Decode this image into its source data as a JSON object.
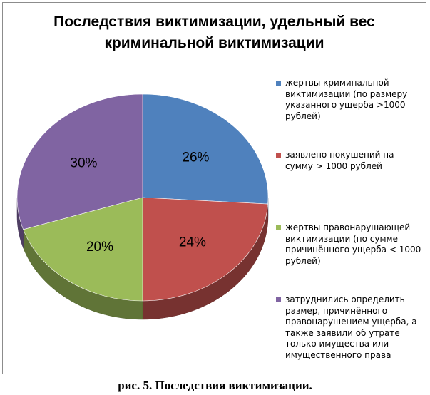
{
  "chart_data": {
    "type": "pie",
    "title_lines": [
      "Последствия виктимизации, удельный вес",
      "криминальной виктимизации"
    ],
    "categories": [
      "жертвы криминальной виктимизации (по размеру указанного ущерба >1000 рублей)",
      "заявлено покушений на сумму > 1000  рублей",
      "жертвы правонарушающей виктимизации (по сумме причинённого ущерба < 1000 рублей)",
      "затруднились определить размер, причинённого правонарушением ущерба, а также заявили об утрате только имущества или имущественного права"
    ],
    "values": [
      26,
      24,
      20,
      30
    ],
    "value_labels": [
      "26%",
      "24%",
      "20%",
      "30%"
    ],
    "colors": [
      "#4f81bd",
      "#c0504d",
      "#9bbb59",
      "#8064a2"
    ],
    "legend_position": "right",
    "style": "3d-pie"
  },
  "legend": {
    "items": [
      [
        "жертвы криминальной",
        "виктимизации (по размеру",
        "указанного ущерба >1000",
        "рублей)"
      ],
      [
        "заявлено покушений на",
        "сумму > 1000  рублей"
      ],
      [
        "жертвы правонарушающей",
        "виктимизации (по сумме",
        "причинённого ущерба < 1000",
        "рублей)"
      ],
      [
        "затруднились определить",
        "размер, причинённого",
        "правонарушением ущерба, а",
        "также заявили об утрате",
        "только имущества или",
        "имущественного права"
      ]
    ]
  },
  "caption": "рис. 5. Последствия виктимизации."
}
